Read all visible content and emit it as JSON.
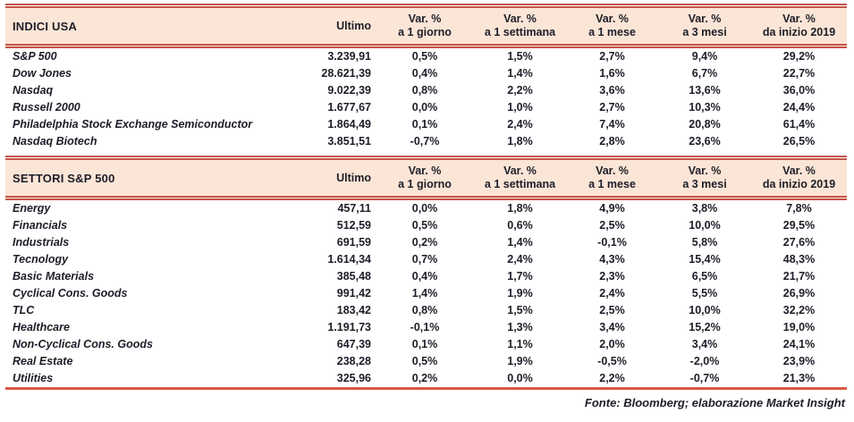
{
  "colors": {
    "header_background": "#FBE5D6",
    "border_red": "#C5564C",
    "bottom_line_red": "#D75A44",
    "text_dark": "#1D1D28"
  },
  "indices": {
    "title": "INDICI USA",
    "ultimo_label": "Ultimo",
    "var_headers": [
      {
        "line1": "Var. %",
        "line2": "a 1 giorno"
      },
      {
        "line1": "Var. %",
        "line2": "a 1 settimana"
      },
      {
        "line1": "Var. %",
        "line2": "a 1 mese"
      },
      {
        "line1": "Var. %",
        "line2": "a 3 mesi"
      },
      {
        "line1": "Var. %",
        "line2": "da inizio 2019"
      }
    ],
    "rows": [
      {
        "name": "S&P 500",
        "ultimo": "3.239,91",
        "vars": [
          "0,5%",
          "1,5%",
          "2,7%",
          "9,4%",
          "29,2%"
        ]
      },
      {
        "name": "Dow Jones",
        "ultimo": "28.621,39",
        "vars": [
          "0,4%",
          "1,4%",
          "1,6%",
          "6,7%",
          "22,7%"
        ]
      },
      {
        "name": "Nasdaq",
        "ultimo": "9.022,39",
        "vars": [
          "0,8%",
          "2,2%",
          "3,6%",
          "13,6%",
          "36,0%"
        ]
      },
      {
        "name": "Russell 2000",
        "ultimo": "1.677,67",
        "vars": [
          "0,0%",
          "1,0%",
          "2,7%",
          "10,3%",
          "24,4%"
        ]
      },
      {
        "name": "Philadelphia Stock Exchange Semiconductor",
        "ultimo": "1.864,49",
        "vars": [
          "0,1%",
          "2,4%",
          "7,4%",
          "20,8%",
          "61,4%"
        ]
      },
      {
        "name": "Nasdaq Biotech",
        "ultimo": "3.851,51",
        "vars": [
          "-0,7%",
          "1,8%",
          "2,8%",
          "23,6%",
          "26,5%"
        ]
      }
    ]
  },
  "sectors": {
    "title": "SETTORI S&P 500",
    "ultimo_label": "Ultimo",
    "var_headers": [
      {
        "line1": "Var. %",
        "line2": "a 1 giorno"
      },
      {
        "line1": "Var. %",
        "line2": "a 1 settimana"
      },
      {
        "line1": "Var. %",
        "line2": "a 1 mese"
      },
      {
        "line1": "Var. %",
        "line2": "a 3 mesi"
      },
      {
        "line1": "Var. %",
        "line2": "da inizio 2019"
      }
    ],
    "rows": [
      {
        "name": "Energy",
        "ultimo": "457,11",
        "vars": [
          "0,0%",
          "1,8%",
          "4,9%",
          "3,8%",
          "7,8%"
        ]
      },
      {
        "name": "Financials",
        "ultimo": "512,59",
        "vars": [
          "0,5%",
          "0,6%",
          "2,5%",
          "10,0%",
          "29,5%"
        ]
      },
      {
        "name": "Industrials",
        "ultimo": "691,59",
        "vars": [
          "0,2%",
          "1,4%",
          "-0,1%",
          "5,8%",
          "27,6%"
        ]
      },
      {
        "name": "Tecnology",
        "ultimo": "1.614,34",
        "vars": [
          "0,7%",
          "2,4%",
          "4,3%",
          "15,4%",
          "48,3%"
        ]
      },
      {
        "name": "Basic Materials",
        "ultimo": "385,48",
        "vars": [
          "0,4%",
          "1,7%",
          "2,3%",
          "6,5%",
          "21,7%"
        ]
      },
      {
        "name": "Cyclical Cons. Goods",
        "ultimo": "991,42",
        "vars": [
          "1,4%",
          "1,9%",
          "2,4%",
          "5,5%",
          "26,9%"
        ]
      },
      {
        "name": "TLC",
        "ultimo": "183,42",
        "vars": [
          "0,8%",
          "1,5%",
          "2,5%",
          "10,0%",
          "32,2%"
        ]
      },
      {
        "name": "Healthcare",
        "ultimo": "1.191,73",
        "vars": [
          "-0,1%",
          "1,3%",
          "3,4%",
          "15,2%",
          "19,0%"
        ]
      },
      {
        "name": "Non-Cyclical Cons. Goods",
        "ultimo": "647,39",
        "vars": [
          "0,1%",
          "1,1%",
          "2,0%",
          "3,4%",
          "24,1%"
        ]
      },
      {
        "name": "Real Estate",
        "ultimo": "238,28",
        "vars": [
          "0,5%",
          "1,9%",
          "-0,5%",
          "-2,0%",
          "23,9%"
        ]
      },
      {
        "name": "Utilities",
        "ultimo": "325,96",
        "vars": [
          "0,2%",
          "0,0%",
          "2,2%",
          "-0,7%",
          "21,3%"
        ]
      }
    ]
  },
  "footer": "Fonte: Bloomberg; elaborazione Market Insight"
}
